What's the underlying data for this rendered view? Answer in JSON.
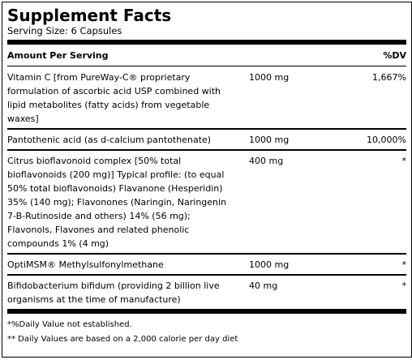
{
  "header": {
    "title": "Supplement Facts",
    "serving_size": "Serving Size: 6 Capsules"
  },
  "table": {
    "columns": [
      "Amount Per Serving",
      "%DV"
    ],
    "rows": [
      [
        "Vitamin C [from PureWay-C® proprietary formulation of ascorbic acid USP combined with lipid metabolites (fatty acids) from vegetable waxes]",
        "1000 mg",
        "1,667%"
      ],
      [
        "Pantothenic acid (as d-calcium pantothenate)",
        "1000 mg",
        "10,000%"
      ],
      [
        "Citrus bioflavonoid complex [50% total bioflavonoids (200 mg)] Typical profile: (to equal 50% total bioflavonoids) Flavanone (Hesperidin) 35% (140 mg); Flavonones (Naringin, Naringenin 7-B-Rutinoside and others) 14% (56 mg); Flavonols, Flavones and related phenolic compounds 1% (4 mg)",
        "400 mg",
        "*"
      ],
      [
        "OptiMSM® Methylsulfonylmethane",
        "1000 mg",
        "*"
      ],
      [
        "Bifidobacterium bifidum (providing 2 billion live organisms at the time of manufacture)",
        "40 mg",
        "*"
      ]
    ]
  },
  "footnotes": [
    "*%Daily Value not established.",
    "** Daily Values are based on a 2,000 calorie per day diet"
  ]
}
